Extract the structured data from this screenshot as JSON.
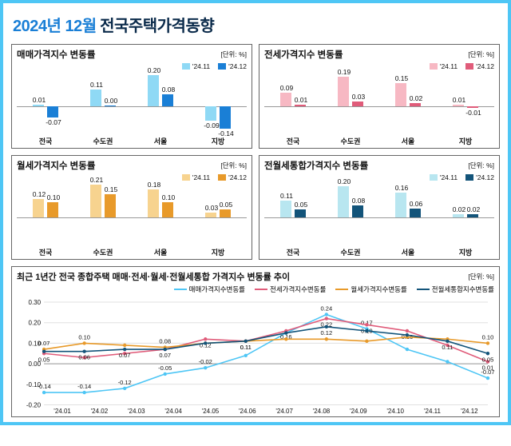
{
  "title": {
    "year": "2024년 12월",
    "text": "전국주택가격동향"
  },
  "unit_label": "[단위: %]",
  "categories": [
    "전국",
    "수도권",
    "서울",
    "지방"
  ],
  "legend_prev": "'24.11",
  "legend_curr": "'24.12",
  "colors": {
    "blue_light": "#8fd9f5",
    "blue_dark": "#1a7fd6",
    "pink_light": "#f7b8c3",
    "pink_dark": "#e05c7a",
    "orange_light": "#f7d38f",
    "orange_dark": "#e89a2a",
    "teal_light": "#b8e6f0",
    "teal_dark": "#13547a",
    "grid": "#e0e0e0",
    "axis": "#999999",
    "border": "#666666",
    "frame": "#4ec6f5",
    "title_blue": "#1a7fd6",
    "title_dark": "#0a2a4a"
  },
  "panels": [
    {
      "title": "매매가격지수 변동률",
      "color_prev": "#8fd9f5",
      "color_curr": "#1a7fd6",
      "data": [
        {
          "prev": 0.01,
          "curr": -0.07
        },
        {
          "prev": 0.11,
          "curr": 0.0
        },
        {
          "prev": 0.2,
          "curr": 0.08
        },
        {
          "prev": -0.09,
          "curr": -0.14
        }
      ],
      "ymax": 0.22
    },
    {
      "title": "전세가격지수 변동률",
      "color_prev": "#f7b8c3",
      "color_curr": "#e05c7a",
      "data": [
        {
          "prev": 0.09,
          "curr": 0.01
        },
        {
          "prev": 0.19,
          "curr": 0.03
        },
        {
          "prev": 0.15,
          "curr": 0.02
        },
        {
          "prev": 0.01,
          "curr": -0.01
        }
      ],
      "ymax": 0.22
    },
    {
      "title": "월세가격지수 변동률",
      "color_prev": "#f7d38f",
      "color_curr": "#e89a2a",
      "data": [
        {
          "prev": 0.12,
          "curr": 0.1
        },
        {
          "prev": 0.21,
          "curr": 0.15
        },
        {
          "prev": 0.18,
          "curr": 0.1
        },
        {
          "prev": 0.03,
          "curr": 0.05
        }
      ],
      "ymax": 0.22
    },
    {
      "title": "전월세통합가격지수 변동률",
      "color_prev": "#b8e6f0",
      "color_curr": "#13547a",
      "data": [
        {
          "prev": 0.11,
          "curr": 0.05
        },
        {
          "prev": 0.2,
          "curr": 0.08
        },
        {
          "prev": 0.16,
          "curr": 0.06
        },
        {
          "prev": 0.02,
          "curr": 0.02
        }
      ],
      "ymax": 0.22
    }
  ],
  "trend": {
    "title": "최근 1년간 전국 종합주택 매매·전세·월세·전월세통합 가격지수 변동률 추이",
    "series_labels": [
      "매매가격지수변동률",
      "전세가격지수변동률",
      "월세가격지수변동률",
      "전월세통합지수변동률"
    ],
    "series_colors": [
      "#4ec6f5",
      "#e05c7a",
      "#e89a2a",
      "#13547a"
    ],
    "x": [
      "'24.01",
      "'24.02",
      "'24.03",
      "'24.04",
      "'24.05",
      "'24.06",
      "'24.07",
      "'24.08",
      "'24.09",
      "'24.10",
      "'24.11",
      "'24.12"
    ],
    "ylim": [
      -0.2,
      0.3
    ],
    "yticks": [
      -0.2,
      -0.1,
      0.0,
      0.1,
      0.2,
      0.3
    ],
    "series": [
      [
        -0.14,
        -0.14,
        -0.12,
        -0.05,
        -0.02,
        0.04,
        0.15,
        0.24,
        0.17,
        0.07,
        0.01,
        -0.07
      ],
      [
        0.05,
        0.03,
        0.05,
        0.07,
        0.12,
        0.11,
        0.16,
        0.22,
        0.19,
        0.16,
        0.09,
        0.01
      ],
      [
        0.07,
        0.1,
        0.09,
        0.08,
        0.1,
        0.11,
        0.12,
        0.12,
        0.11,
        0.13,
        0.12,
        0.1
      ],
      [
        0.06,
        0.06,
        0.07,
        0.07,
        0.1,
        0.11,
        0.15,
        0.18,
        0.16,
        0.14,
        0.11,
        0.05
      ]
    ],
    "labels_show": [
      [
        true,
        true,
        true,
        true,
        true,
        false,
        false,
        true,
        true,
        false,
        false,
        true
      ],
      [
        true,
        false,
        false,
        true,
        true,
        true,
        true,
        true,
        true,
        true,
        false,
        true
      ],
      [
        true,
        true,
        false,
        true,
        false,
        false,
        false,
        true,
        false,
        false,
        false,
        true
      ],
      [
        false,
        true,
        true,
        false,
        false,
        true,
        false,
        false,
        false,
        false,
        true,
        true
      ]
    ]
  }
}
